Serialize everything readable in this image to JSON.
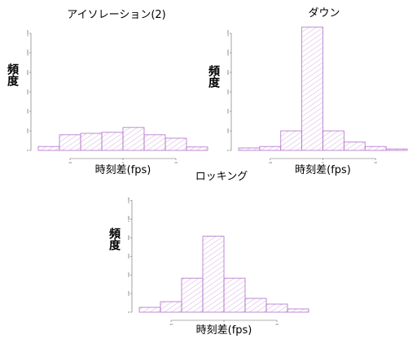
{
  "chart_data": [
    {
      "type": "histogram",
      "title": "アイソレーション(2)",
      "xlabel": "時刻差(fps)",
      "ylabel": "頻度",
      "color": "#b070c8",
      "bins": [
        -16,
        -12,
        -8,
        -4,
        0,
        4,
        8,
        12,
        16
      ],
      "values": [
        40,
        160,
        175,
        185,
        235,
        160,
        125,
        35
      ],
      "xlim": [
        -16,
        16
      ],
      "ylim": [
        0,
        1300
      ],
      "xticks": [
        -10,
        0,
        10
      ],
      "yticks": [
        0,
        200,
        400,
        600,
        800,
        1000,
        1200
      ]
    },
    {
      "type": "histogram",
      "title": "ダウン",
      "xlabel": "時刻差(fps)",
      "ylabel": "頻度",
      "color": "#b070c8",
      "bins": [
        -16,
        -12,
        -8,
        -4,
        0,
        4,
        8,
        12,
        16
      ],
      "values": [
        25,
        40,
        200,
        1265,
        200,
        85,
        40,
        15
      ],
      "xlim": [
        -16,
        16
      ],
      "ylim": [
        0,
        1300
      ],
      "xticks": [
        -10,
        0,
        10
      ],
      "yticks": [
        0,
        200,
        400,
        600,
        800,
        1000,
        1200
      ]
    },
    {
      "type": "histogram",
      "title": "ロッキング",
      "xlabel": "時刻差(fps)",
      "ylabel": "頻度",
      "color": "#b070c8",
      "bins": [
        -16,
        -12,
        -8,
        -4,
        0,
        4,
        8,
        12,
        16
      ],
      "values": [
        52,
        113,
        365,
        815,
        365,
        148,
        87,
        35
      ],
      "xlim": [
        -16,
        16
      ],
      "ylim": [
        0,
        1300
      ],
      "xticks": [
        -10,
        0,
        10
      ],
      "yticks": [
        0,
        200,
        400,
        600,
        800,
        1000,
        1200
      ]
    }
  ]
}
